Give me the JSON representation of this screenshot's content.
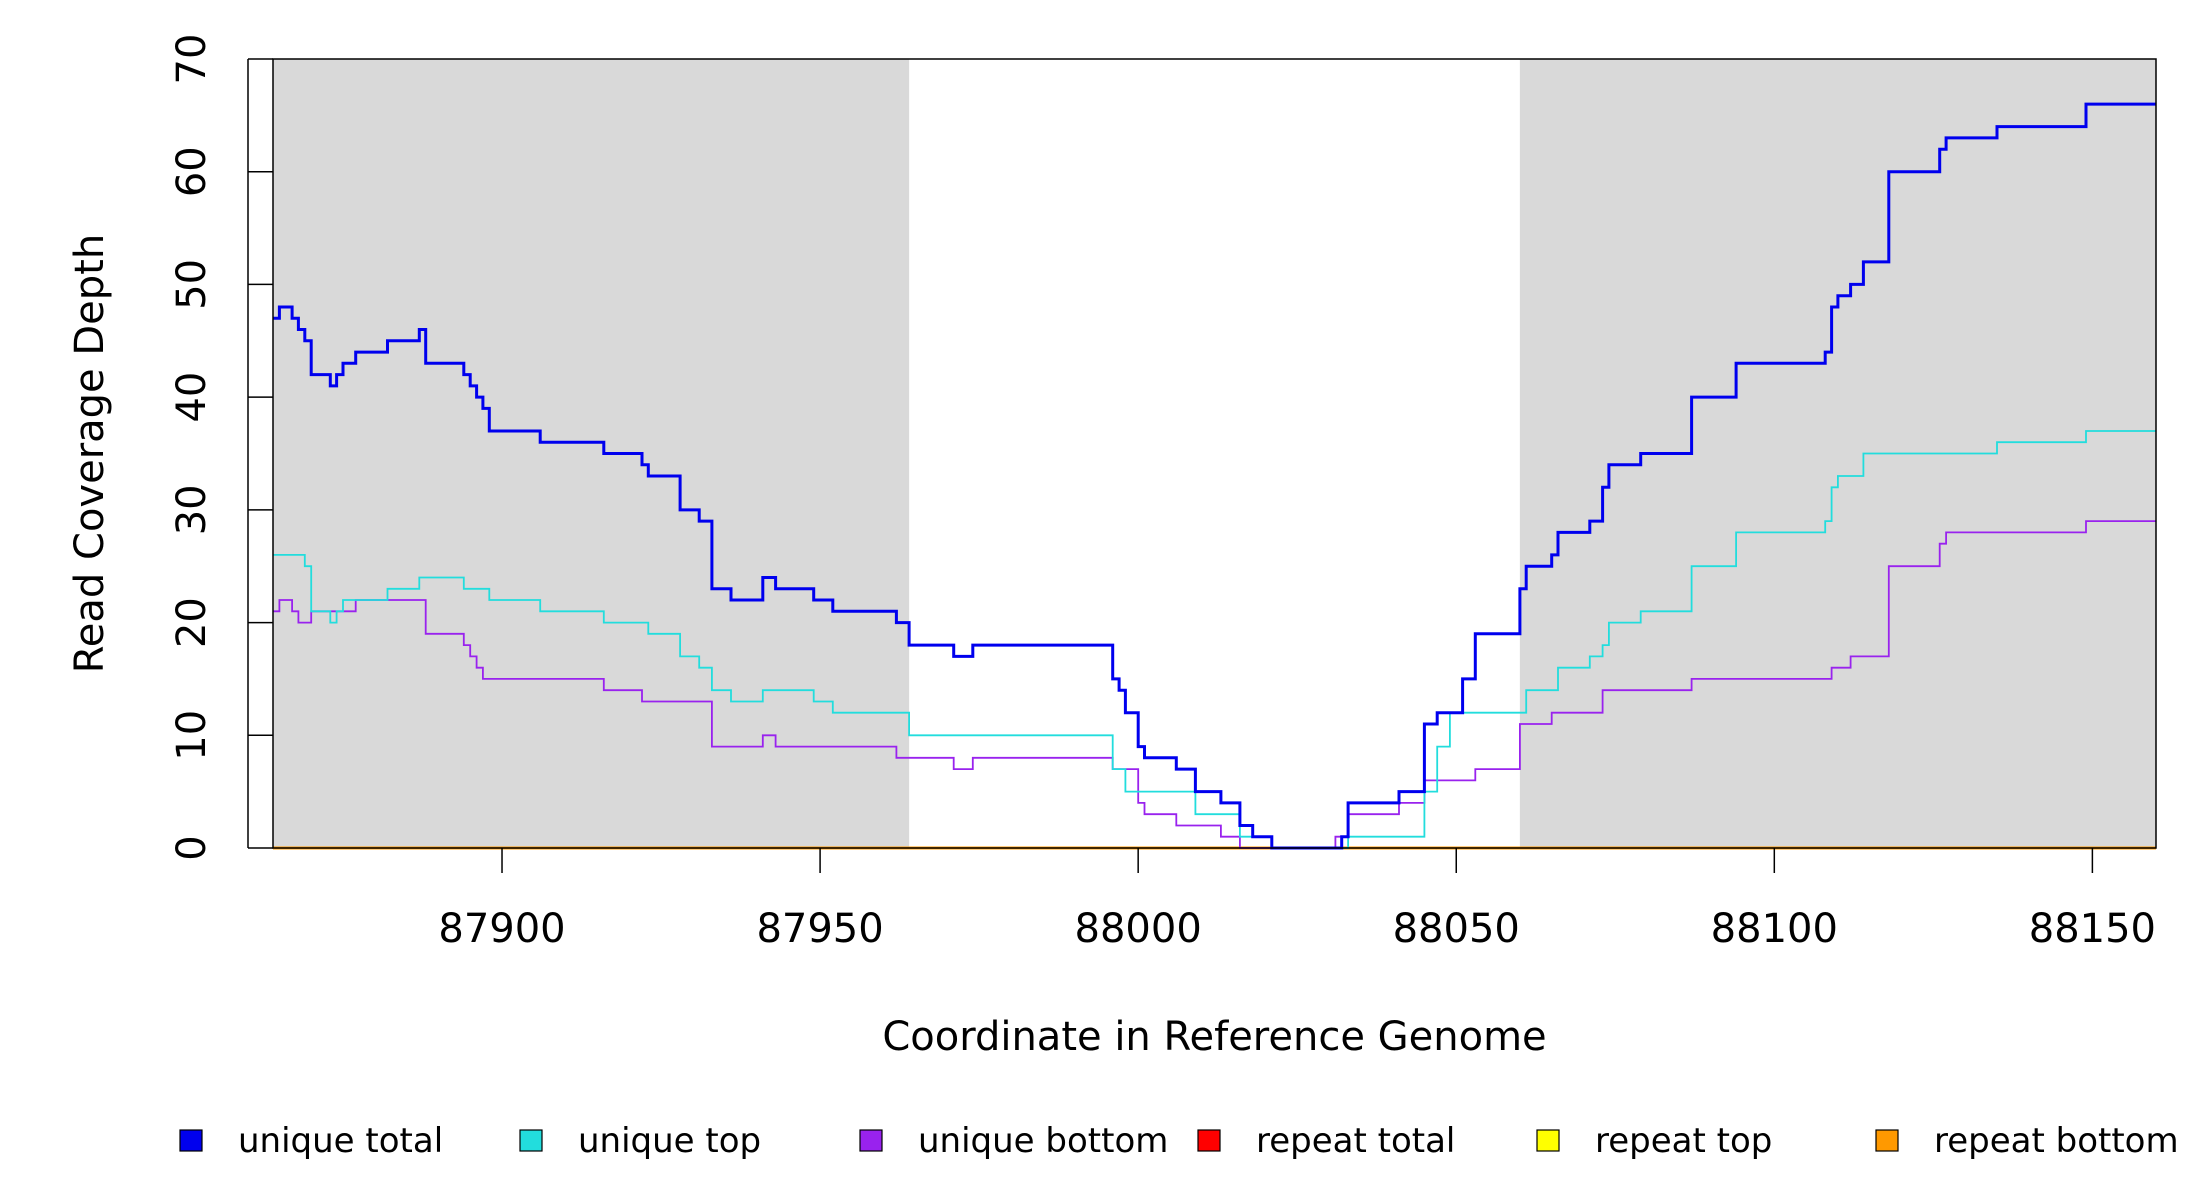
{
  "chart_data": {
    "type": "line",
    "title": "",
    "xlabel": "Coordinate in Reference Genome",
    "ylabel": "Read Coverage Depth",
    "xlim": [
      87864,
      88160
    ],
    "ylim": [
      0,
      70
    ],
    "x_ticks": [
      87900,
      87950,
      88000,
      88050,
      88100,
      88150
    ],
    "y_ticks": [
      0,
      10,
      20,
      30,
      40,
      50,
      60,
      70
    ],
    "grid": false,
    "shaded_regions": [
      {
        "x_start": 87864,
        "x_end": 87964
      },
      {
        "x_start": 88060,
        "x_end": 88160
      }
    ],
    "legend": {
      "position": "bottom",
      "entries": [
        "unique total",
        "unique top",
        "unique bottom",
        "repeat total",
        "repeat top",
        "repeat bottom"
      ]
    },
    "series": [
      {
        "name": "unique total",
        "color": "#0000ee",
        "step": true,
        "points": [
          [
            87864,
            47
          ],
          [
            87865,
            48
          ],
          [
            87867,
            47
          ],
          [
            87868,
            46
          ],
          [
            87869,
            45
          ],
          [
            87870,
            42
          ],
          [
            87873,
            41
          ],
          [
            87874,
            42
          ],
          [
            87875,
            43
          ],
          [
            87877,
            44
          ],
          [
            87882,
            45
          ],
          [
            87887,
            46
          ],
          [
            87888,
            43
          ],
          [
            87894,
            42
          ],
          [
            87895,
            41
          ],
          [
            87896,
            40
          ],
          [
            87897,
            39
          ],
          [
            87898,
            37
          ],
          [
            87906,
            36
          ],
          [
            87916,
            35
          ],
          [
            87922,
            34
          ],
          [
            87923,
            33
          ],
          [
            87928,
            30
          ],
          [
            87931,
            29
          ],
          [
            87933,
            23
          ],
          [
            87936,
            22
          ],
          [
            87941,
            24
          ],
          [
            87943,
            23
          ],
          [
            87949,
            22
          ],
          [
            87952,
            21
          ],
          [
            87962,
            20
          ],
          [
            87964,
            18
          ],
          [
            87971,
            17
          ],
          [
            87974,
            18
          ],
          [
            87996,
            15
          ],
          [
            87997,
            14
          ],
          [
            87998,
            12
          ],
          [
            88000,
            9
          ],
          [
            88001,
            8
          ],
          [
            88006,
            7
          ],
          [
            88009,
            5
          ],
          [
            88013,
            4
          ],
          [
            88016,
            2
          ],
          [
            88018,
            1
          ],
          [
            88021,
            0
          ],
          [
            88032,
            1
          ],
          [
            88033,
            4
          ],
          [
            88041,
            5
          ],
          [
            88045,
            11
          ],
          [
            88047,
            12
          ],
          [
            88051,
            15
          ],
          [
            88053,
            19
          ],
          [
            88060,
            23
          ],
          [
            88061,
            25
          ],
          [
            88065,
            26
          ],
          [
            88066,
            28
          ],
          [
            88071,
            29
          ],
          [
            88073,
            32
          ],
          [
            88074,
            34
          ],
          [
            88079,
            35
          ],
          [
            88087,
            40
          ],
          [
            88094,
            43
          ],
          [
            88108,
            44
          ],
          [
            88109,
            48
          ],
          [
            88110,
            49
          ],
          [
            88112,
            50
          ],
          [
            88114,
            52
          ],
          [
            88118,
            60
          ],
          [
            88126,
            62
          ],
          [
            88127,
            63
          ],
          [
            88135,
            64
          ],
          [
            88149,
            66
          ],
          [
            88160,
            66
          ]
        ]
      },
      {
        "name": "unique top",
        "color": "#22dddd",
        "step": true,
        "points": [
          [
            87864,
            26
          ],
          [
            87869,
            25
          ],
          [
            87870,
            21
          ],
          [
            87873,
            20
          ],
          [
            87874,
            21
          ],
          [
            87875,
            22
          ],
          [
            87882,
            23
          ],
          [
            87887,
            24
          ],
          [
            87894,
            23
          ],
          [
            87898,
            22
          ],
          [
            87906,
            21
          ],
          [
            87916,
            20
          ],
          [
            87923,
            19
          ],
          [
            87928,
            17
          ],
          [
            87931,
            16
          ],
          [
            87933,
            14
          ],
          [
            87936,
            13
          ],
          [
            87941,
            14
          ],
          [
            87949,
            13
          ],
          [
            87952,
            12
          ],
          [
            87964,
            10
          ],
          [
            87996,
            7
          ],
          [
            87998,
            5
          ],
          [
            88009,
            3
          ],
          [
            88016,
            1
          ],
          [
            88021,
            0
          ],
          [
            88033,
            1
          ],
          [
            88045,
            5
          ],
          [
            88047,
            9
          ],
          [
            88049,
            12
          ],
          [
            88061,
            14
          ],
          [
            88066,
            16
          ],
          [
            88071,
            17
          ],
          [
            88073,
            18
          ],
          [
            88074,
            20
          ],
          [
            88079,
            21
          ],
          [
            88087,
            25
          ],
          [
            88094,
            28
          ],
          [
            88108,
            29
          ],
          [
            88109,
            32
          ],
          [
            88110,
            33
          ],
          [
            88114,
            35
          ],
          [
            88135,
            36
          ],
          [
            88149,
            37
          ],
          [
            88160,
            37
          ]
        ]
      },
      {
        "name": "unique bottom",
        "color": "#9922ee",
        "step": true,
        "points": [
          [
            87864,
            21
          ],
          [
            87865,
            22
          ],
          [
            87867,
            21
          ],
          [
            87868,
            20
          ],
          [
            87870,
            21
          ],
          [
            87877,
            22
          ],
          [
            87888,
            19
          ],
          [
            87894,
            18
          ],
          [
            87895,
            17
          ],
          [
            87896,
            16
          ],
          [
            87897,
            15
          ],
          [
            87916,
            14
          ],
          [
            87922,
            13
          ],
          [
            87927,
            13
          ],
          [
            87928,
            13
          ],
          [
            87933,
            9
          ],
          [
            87941,
            10
          ],
          [
            87943,
            9
          ],
          [
            87962,
            8
          ],
          [
            87971,
            7
          ],
          [
            87974,
            8
          ],
          [
            87996,
            7
          ],
          [
            88000,
            4
          ],
          [
            88001,
            3
          ],
          [
            88006,
            2
          ],
          [
            88013,
            1
          ],
          [
            88016,
            0
          ],
          [
            88031,
            1
          ],
          [
            88033,
            3
          ],
          [
            88041,
            4
          ],
          [
            88045,
            6
          ],
          [
            88053,
            7
          ],
          [
            88060,
            11
          ],
          [
            88065,
            12
          ],
          [
            88073,
            14
          ],
          [
            88087,
            15
          ],
          [
            88109,
            16
          ],
          [
            88112,
            17
          ],
          [
            88118,
            25
          ],
          [
            88126,
            27
          ],
          [
            88127,
            28
          ],
          [
            88149,
            29
          ],
          [
            88160,
            29
          ]
        ]
      },
      {
        "name": "repeat total",
        "color": "#ff0000",
        "step": true,
        "points": [
          [
            87864,
            0
          ],
          [
            88160,
            0
          ]
        ]
      },
      {
        "name": "repeat top",
        "color": "#ffff00",
        "step": true,
        "points": [
          [
            87864,
            0
          ],
          [
            88160,
            0
          ]
        ]
      },
      {
        "name": "repeat bottom",
        "color": "#ff9900",
        "step": true,
        "points": [
          [
            87864,
            0
          ],
          [
            88160,
            0
          ]
        ]
      }
    ]
  }
}
